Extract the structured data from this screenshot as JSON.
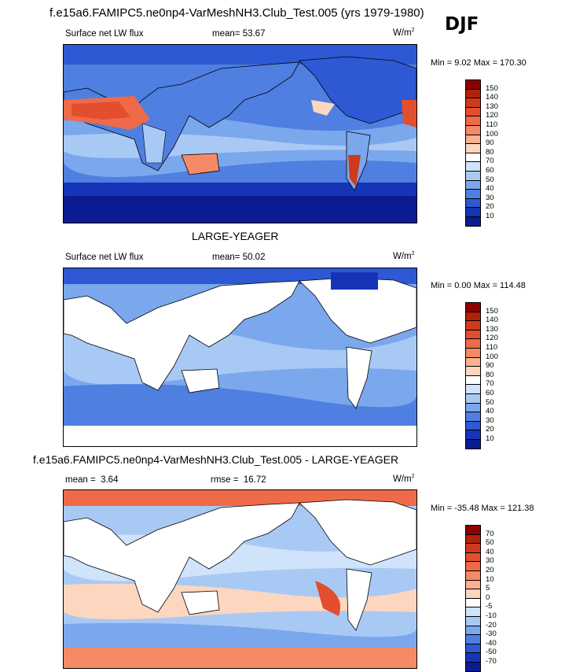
{
  "header": {
    "title": "f.e15a6.FAMIPC5.ne0np4-VarMeshNH3.Club_Test.005 (yrs 1979-1980)",
    "season": "DJF"
  },
  "panels": [
    {
      "variable": "Surface net LW flux",
      "stat_label": "mean=",
      "stat_value": "53.67",
      "units_base": "W/m",
      "units_exp": "2",
      "minmax": "Min =   9.02 Max = 170.30",
      "colorbar_labels": [
        "150",
        "140",
        "130",
        "120",
        "110",
        "100",
        "90",
        "80",
        "70",
        "60",
        "50",
        "40",
        "30",
        "20",
        "10"
      ],
      "colorbar_colors": [
        "#8b0000",
        "#b22208",
        "#cf3a1c",
        "#e24e2e",
        "#ee6a48",
        "#f58a66",
        "#fbb08f",
        "#fcd6bf",
        "#ffffff",
        "#cfe3fb",
        "#a9c9f5",
        "#7ba7ed",
        "#4f7fe0",
        "#2e58d4",
        "#1634b8",
        "#0a1c8f"
      ]
    },
    {
      "subtitle": "LARGE-YEAGER",
      "variable": "Surface net LW flux",
      "stat_label": "mean=",
      "stat_value": "50.02",
      "units_base": "W/m",
      "units_exp": "2",
      "minmax": "Min =   0.00 Max = 114.48",
      "colorbar_labels": [
        "150",
        "140",
        "130",
        "120",
        "110",
        "100",
        "90",
        "80",
        "70",
        "60",
        "50",
        "40",
        "30",
        "20",
        "10"
      ],
      "colorbar_colors": [
        "#8b0000",
        "#b22208",
        "#cf3a1c",
        "#e24e2e",
        "#ee6a48",
        "#f58a66",
        "#fbb08f",
        "#fcd6bf",
        "#ffffff",
        "#cfe3fb",
        "#a9c9f5",
        "#7ba7ed",
        "#4f7fe0",
        "#2e58d4",
        "#1634b8",
        "#0a1c8f"
      ]
    },
    {
      "subtitle": "f.e15a6.FAMIPC5.ne0np4-VarMeshNH3.Club_Test.005 - LARGE-YEAGER",
      "stat_label": "mean =",
      "stat_value": "3.64",
      "rmse_label": "rmse =",
      "rmse_value": "16.72",
      "units_base": "W/m",
      "units_exp": "2",
      "minmax": "Min = -35.48 Max = 121.38",
      "colorbar_labels": [
        "70",
        "50",
        "40",
        "30",
        "20",
        "10",
        "5",
        "0",
        "-5",
        "-10",
        "-20",
        "-30",
        "-40",
        "-50",
        "-70"
      ],
      "colorbar_colors": [
        "#8b0000",
        "#b22208",
        "#cf3a1c",
        "#e24e2e",
        "#ee6a48",
        "#f58a66",
        "#fbb08f",
        "#fcd6bf",
        "#ffffff",
        "#cfe3fb",
        "#a9c9f5",
        "#7ba7ed",
        "#4f7fe0",
        "#2e58d4",
        "#1634b8",
        "#0a1c8f"
      ]
    }
  ]
}
